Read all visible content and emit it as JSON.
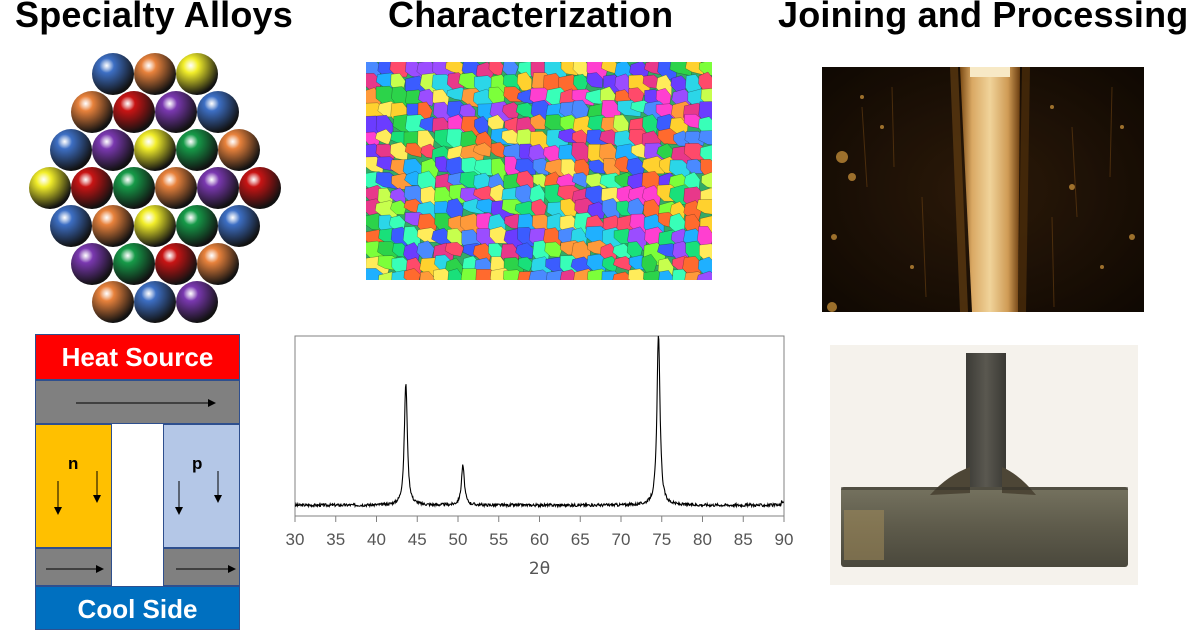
{
  "titles": {
    "alloys": "Specialty Alloys",
    "characterization": "Characterization",
    "joining": "Joining and Processing"
  },
  "thermoelectric": {
    "heat_source": "Heat Source",
    "cool_side": "Cool Side",
    "n_label": "n",
    "p_label": "p"
  },
  "colors": {
    "sphere_blue": "#3d6fc4",
    "sphere_orange": "#e8823c",
    "sphere_yellow": "#f2ee2a",
    "sphere_red": "#c81414",
    "sphere_purple": "#7a38b0",
    "sphere_green": "#169a48"
  },
  "sphere_rows": [
    [
      "blue",
      "orange",
      "yellow"
    ],
    [
      "orange",
      "red",
      "purple",
      "blue"
    ],
    [
      "blue",
      "purple",
      "yellow",
      "green",
      "orange"
    ],
    [
      "yellow",
      "red",
      "green",
      "orange",
      "purple",
      "red"
    ],
    [
      "blue",
      "orange",
      "yellow",
      "green",
      "blue"
    ],
    [
      "purple",
      "green",
      "red",
      "orange"
    ],
    [
      "orange",
      "blue",
      "purple"
    ]
  ],
  "chart_data": {
    "type": "line",
    "title": "",
    "xlabel": "2θ",
    "ylabel": "",
    "xlim": [
      30,
      90
    ],
    "ylim": [
      0,
      100
    ],
    "xticks": [
      "30",
      "35",
      "40",
      "45",
      "50",
      "55",
      "60",
      "65",
      "70",
      "75",
      "80",
      "85",
      "90"
    ],
    "baseline": 6,
    "peaks": [
      {
        "x": 43.6,
        "height": 68
      },
      {
        "x": 50.6,
        "height": 22
      },
      {
        "x": 74.6,
        "height": 96
      }
    ],
    "grid": false
  }
}
